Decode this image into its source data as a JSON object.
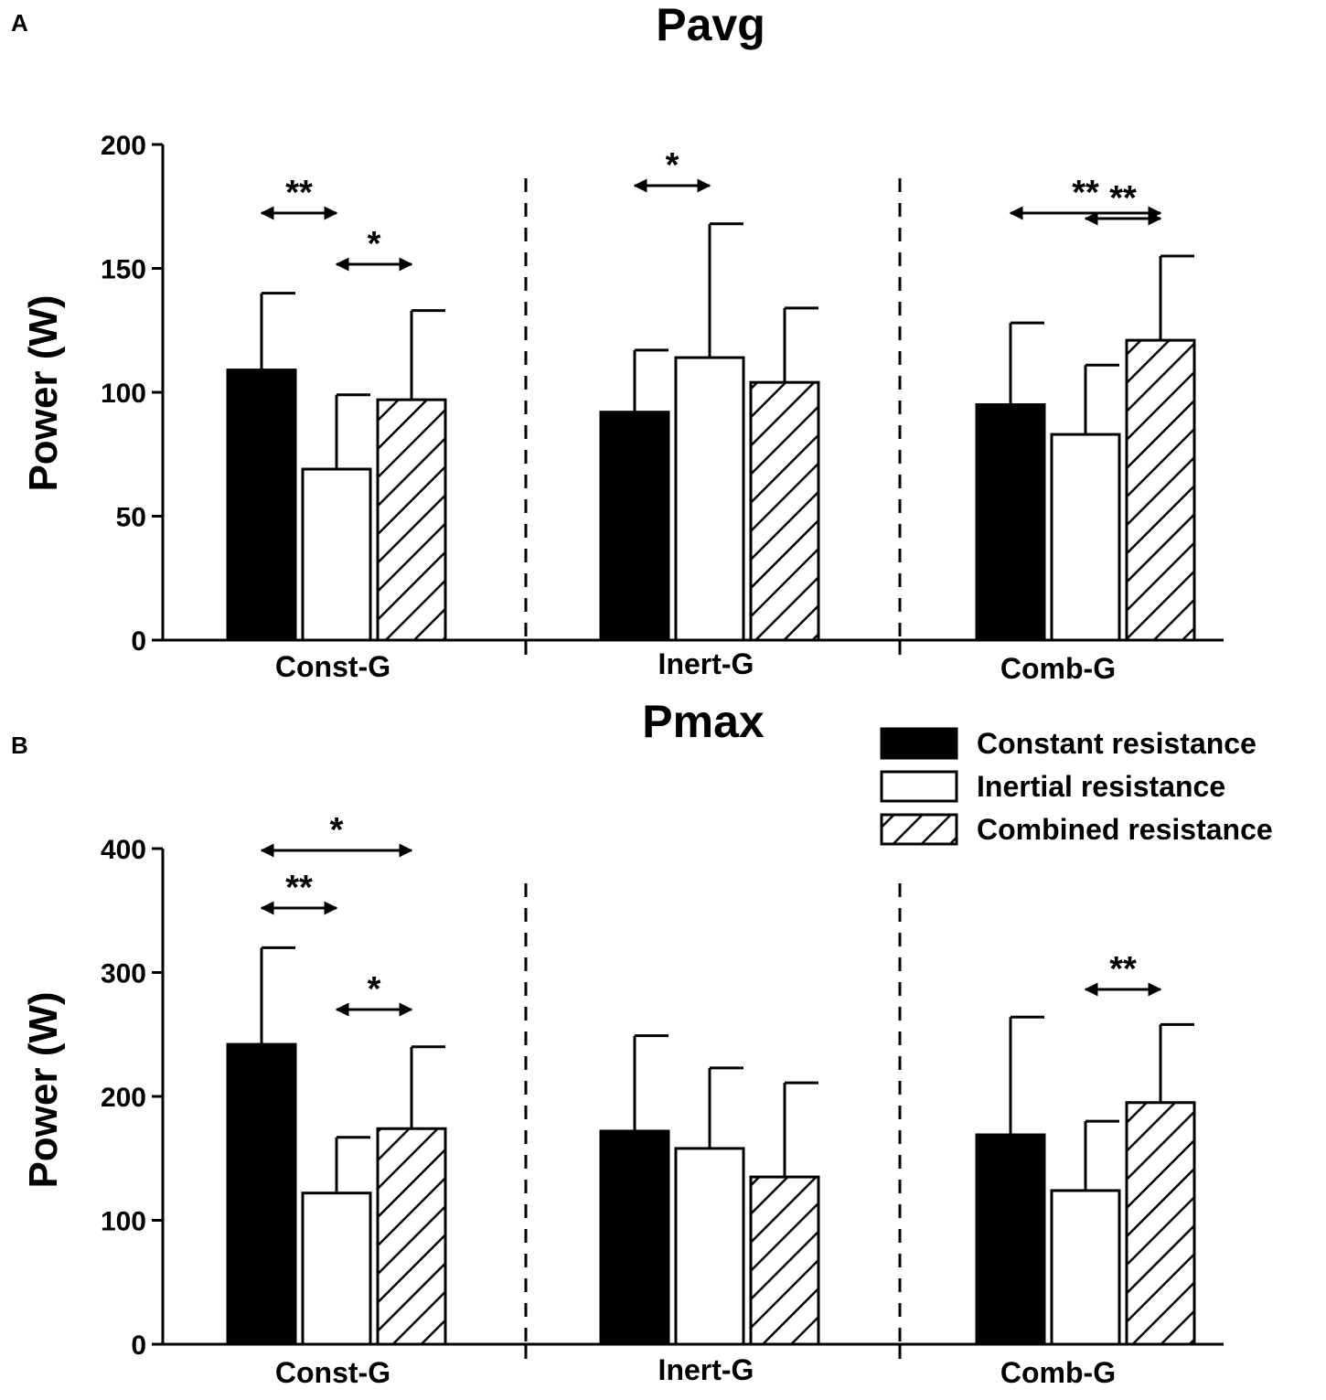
{
  "chart_data": [
    {
      "type": "bar",
      "panel_label": "A",
      "title": "Pavg",
      "xlabel": "",
      "ylabel": "Power (W)",
      "ylim": [
        0,
        200
      ],
      "yticks": [
        0,
        50,
        100,
        150,
        200
      ],
      "categories": [
        "Const-G",
        "Inert-G",
        "Comb-G"
      ],
      "series": [
        {
          "name": "Constant resistance",
          "values": [
            109,
            92,
            95
          ],
          "errors": [
            31,
            25,
            33
          ]
        },
        {
          "name": "Inertial resistance",
          "values": [
            69,
            114,
            83
          ],
          "errors": [
            30,
            54,
            28
          ]
        },
        {
          "name": "Combined resistance",
          "values": [
            97,
            104,
            121
          ],
          "errors": [
            36,
            30,
            34
          ]
        }
      ],
      "significance": [
        {
          "group": 0,
          "from": 0,
          "to": 1,
          "label": "**",
          "level": 1
        },
        {
          "group": 0,
          "from": 1,
          "to": 2,
          "label": "*",
          "level": 0
        },
        {
          "group": 1,
          "from": 0,
          "to": 1,
          "label": "*",
          "level": 0
        },
        {
          "group": 2,
          "from": 0,
          "to": 2,
          "label": "**",
          "level": 1
        },
        {
          "group": 2,
          "from": 1,
          "to": 2,
          "label": "**",
          "level": 0
        }
      ]
    },
    {
      "type": "bar",
      "panel_label": "B",
      "title": "Pmax",
      "xlabel": "",
      "ylabel": "Power (W)",
      "ylim": [
        0,
        400
      ],
      "yticks": [
        0,
        100,
        200,
        300,
        400
      ],
      "categories": [
        "Const-G",
        "Inert-G",
        "Comb-G"
      ],
      "series": [
        {
          "name": "Constant resistance",
          "values": [
            242,
            172,
            169
          ],
          "errors": [
            78,
            77,
            95
          ]
        },
        {
          "name": "Inertial resistance",
          "values": [
            122,
            158,
            124
          ],
          "errors": [
            45,
            65,
            56
          ]
        },
        {
          "name": "Combined resistance",
          "values": [
            174,
            135,
            195
          ],
          "errors": [
            66,
            76,
            63
          ]
        }
      ],
      "significance": [
        {
          "group": 0,
          "from": 0,
          "to": 2,
          "label": "*",
          "level": 2
        },
        {
          "group": 0,
          "from": 0,
          "to": 1,
          "label": "**",
          "level": 1
        },
        {
          "group": 0,
          "from": 1,
          "to": 2,
          "label": "*",
          "level": 0
        },
        {
          "group": 2,
          "from": 1,
          "to": 2,
          "label": "**",
          "level": 0
        }
      ]
    }
  ],
  "legend": {
    "items": [
      {
        "label": "Constant resistance",
        "style": "solid"
      },
      {
        "label": "Inertial resistance",
        "style": "open"
      },
      {
        "label": "Combined resistance",
        "style": "hatched"
      }
    ]
  },
  "colors": {
    "ink": "#000000",
    "paper": "#ffffff"
  }
}
